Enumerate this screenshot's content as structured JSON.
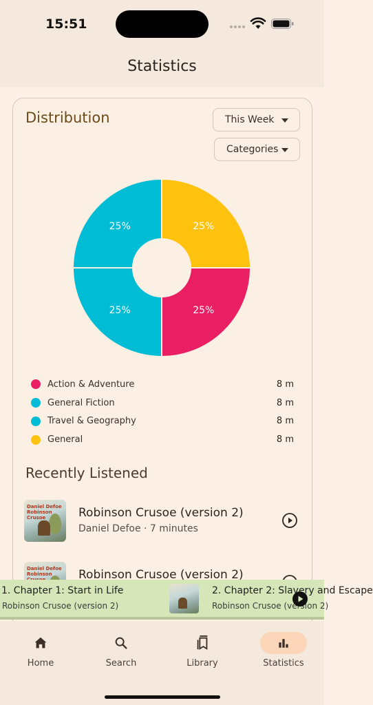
{
  "status_bar": {
    "time": "15:51"
  },
  "header": {
    "title": "Statistics"
  },
  "distribution": {
    "title": "Distribution",
    "period_dropdown": "This Week",
    "group_dropdown": "Categories"
  },
  "chart_data": {
    "type": "pie",
    "donut": true,
    "categories": [
      "General",
      "Action & Adventure",
      "Travel & Geography",
      "General Fiction"
    ],
    "values": [
      25,
      25,
      25,
      25
    ],
    "labels": [
      "25%",
      "25%",
      "25%",
      "25%"
    ],
    "colors": [
      "#ffc20e",
      "#e91e63",
      "#00bcd4",
      "#00bcd4"
    ]
  },
  "legend": [
    {
      "name": "Action & Adventure",
      "value": "8 m",
      "color": "#e91e63"
    },
    {
      "name": "General Fiction",
      "value": "8 m",
      "color": "#00bcd4"
    },
    {
      "name": "Travel & Geography",
      "value": "8 m",
      "color": "#00bcd4"
    },
    {
      "name": "General",
      "value": "8 m",
      "color": "#ffc20e"
    }
  ],
  "recently_listened": {
    "title": "Recently Listened",
    "items": [
      {
        "title": "Robinson Crusoe (version 2)",
        "subtitle": "Daniel Defoe · 7 minutes",
        "cover_text": "Daniel Defoe Robinson Crusoe"
      },
      {
        "title": "Robinson Crusoe (version 2)",
        "subtitle": "",
        "cover_text": "Daniel Defoe Robinson Crusoe"
      }
    ]
  },
  "mini_player": {
    "current_chapter": "1. Chapter 1: Start in Life",
    "current_book": "Robinson Crusoe (version 2)",
    "next_chapter": "2. Chapter 2: Slavery and Escape",
    "next_book": "Robinson Crusoe (version 2)"
  },
  "nav": {
    "items": [
      {
        "label": "Home",
        "icon": "home-icon"
      },
      {
        "label": "Search",
        "icon": "search-icon"
      },
      {
        "label": "Library",
        "icon": "library-icon"
      },
      {
        "label": "Statistics",
        "icon": "bar-chart-icon",
        "active": true
      }
    ]
  },
  "colors": {
    "accent": "#fbd6b8",
    "mini_player_bg": "#d6e6b8",
    "card_title": "#6b4c1a"
  }
}
